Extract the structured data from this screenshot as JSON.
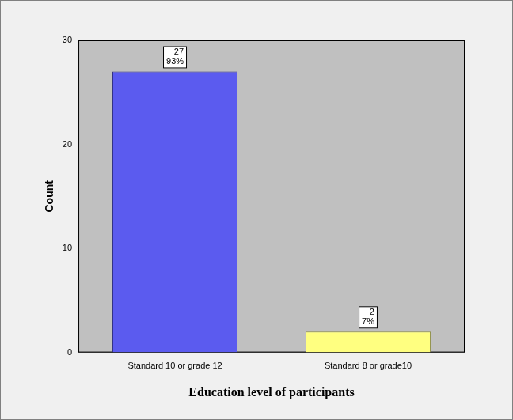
{
  "chart_data": {
    "type": "bar",
    "categories": [
      "Standard 10 or grade 12",
      "Standard 8 or grade10"
    ],
    "values": [
      27,
      2
    ],
    "value_labels": [
      "27\n93%",
      "2\n7%"
    ],
    "colors": [
      "#5b5bef",
      "#ffff80"
    ],
    "x_label": "Education level of participants",
    "y_label": "Count",
    "ylim": [
      0,
      30
    ],
    "yticks": [
      0,
      10,
      20,
      30
    ],
    "grid": false,
    "data_labels": true
  }
}
